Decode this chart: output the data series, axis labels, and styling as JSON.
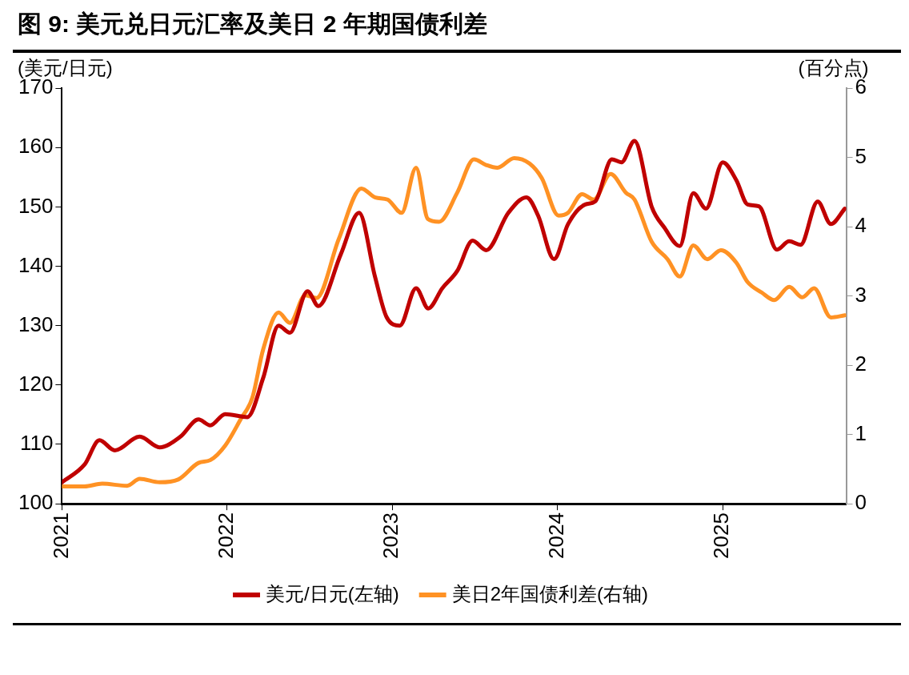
{
  "chart_data": {
    "type": "line",
    "title": "图 9: 美元兑日元汇率及美日 2 年期国债利差",
    "ylabel": "(美元/日元)",
    "y2label": "(百分点)",
    "xlim": [
      "2021-01-01",
      "2025-10-01"
    ],
    "xticks": [
      "2021",
      "2022",
      "2023",
      "2024",
      "2025"
    ],
    "ylim": [
      100,
      170
    ],
    "yticks": [
      100,
      110,
      120,
      130,
      140,
      150,
      160,
      170
    ],
    "y2lim": [
      0,
      6
    ],
    "y2ticks": [
      0,
      1,
      2,
      3,
      4,
      5,
      6
    ],
    "grid": false,
    "legend": "bottom",
    "marker": "none",
    "line_style": "solid",
    "series": [
      {
        "name": "美元/日元(左轴)",
        "color": "#c00000",
        "x": [
          "2021-01-01",
          "2021-02-20",
          "2021-03-25",
          "2021-04-28",
          "2021-06-22",
          "2021-08-05",
          "2021-09-20",
          "2021-10-30",
          "2021-11-25",
          "2021-12-28",
          "2022-02-15",
          "2022-03-22",
          "2022-04-25",
          "2022-05-20",
          "2022-06-28",
          "2022-07-22",
          "2022-09-10",
          "2022-10-20",
          "2022-11-24",
          "2022-12-20",
          "2023-01-18",
          "2023-02-23",
          "2023-03-22",
          "2023-04-22",
          "2023-05-25",
          "2023-06-28",
          "2023-07-28",
          "2023-09-15",
          "2023-10-25",
          "2023-11-20",
          "2023-12-25",
          "2024-01-25",
          "2024-03-03",
          "2024-03-25",
          "2024-05-01",
          "2024-05-22",
          "2024-06-20",
          "2024-07-28",
          "2024-08-25",
          "2024-09-28",
          "2024-10-28",
          "2024-11-25",
          "2025-01-01",
          "2025-01-31",
          "2025-02-25",
          "2025-03-22",
          "2025-05-01",
          "2025-05-28",
          "2025-06-22",
          "2025-07-30",
          "2025-08-28",
          "2025-09-28"
        ],
        "values": [
          103.6,
          106.6,
          110.7,
          109,
          111.3,
          109.5,
          111.3,
          114.2,
          113.2,
          115.1,
          114.6,
          121.2,
          130,
          128.8,
          135.8,
          133.3,
          142.1,
          149,
          138.3,
          131.4,
          130,
          136.3,
          132.9,
          136.3,
          139.2,
          144.3,
          142.7,
          149,
          151.6,
          148.5,
          141.2,
          147.1,
          150.4,
          150.9,
          158,
          157.5,
          161.1,
          150,
          146.5,
          143.4,
          152.3,
          149.7,
          157.5,
          154.5,
          150.4,
          150.1,
          142.8,
          144.2,
          143.6,
          150.9,
          147.1,
          149.7
        ]
      },
      {
        "name": "美日2年国债利差(右轴)",
        "color": "#ff9224",
        "axis": "y2",
        "x": [
          "2021-01-01",
          "2021-02-20",
          "2021-03-31",
          "2021-05-25",
          "2021-06-22",
          "2021-08-05",
          "2021-09-15",
          "2021-10-30",
          "2021-11-25",
          "2021-12-28",
          "2022-02-01",
          "2022-02-26",
          "2022-03-22",
          "2022-04-25",
          "2022-05-20",
          "2022-06-23",
          "2022-07-18",
          "2022-09-05",
          "2022-10-25",
          "2022-11-25",
          "2022-12-22",
          "2023-01-22",
          "2023-02-23",
          "2023-03-21",
          "2023-04-15",
          "2023-05-25",
          "2023-07-01",
          "2023-07-28",
          "2023-08-22",
          "2023-09-28",
          "2023-11-01",
          "2023-11-28",
          "2024-01-04",
          "2024-01-25",
          "2024-02-25",
          "2024-03-22",
          "2024-04-28",
          "2024-06-01",
          "2024-06-20",
          "2024-07-28",
          "2024-09-01",
          "2024-09-28",
          "2024-10-28",
          "2024-11-28",
          "2024-12-28",
          "2025-01-31",
          "2025-02-25",
          "2025-03-28",
          "2025-04-25",
          "2025-05-28",
          "2025-06-26",
          "2025-07-22",
          "2025-08-28",
          "2025-09-28"
        ],
        "values": [
          0.25,
          0.25,
          0.29,
          0.26,
          0.36,
          0.31,
          0.35,
          0.59,
          0.63,
          0.84,
          1.23,
          1.53,
          2.23,
          2.76,
          2.61,
          3.01,
          2.97,
          3.82,
          4.55,
          4.42,
          4.39,
          4.2,
          4.85,
          4.11,
          4.07,
          4.49,
          4.97,
          4.89,
          4.85,
          4.99,
          4.91,
          4.7,
          4.16,
          4.2,
          4.47,
          4.39,
          4.76,
          4.49,
          4.39,
          3.78,
          3.53,
          3.28,
          3.73,
          3.53,
          3.66,
          3.48,
          3.2,
          3.05,
          2.94,
          3.13,
          2.98,
          3.11,
          2.69,
          2.72
        ]
      }
    ]
  }
}
